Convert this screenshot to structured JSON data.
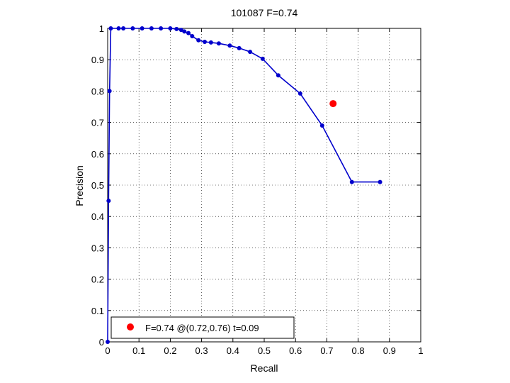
{
  "chart_data": {
    "type": "line",
    "title": "101087 F=0.74",
    "xlabel": "Recall",
    "ylabel": "Precision",
    "xlim": [
      0,
      1
    ],
    "ylim": [
      0,
      1
    ],
    "xticks": [
      "0",
      "0.1",
      "0.2",
      "0.3",
      "0.4",
      "0.5",
      "0.6",
      "0.7",
      "0.8",
      "0.9",
      "1"
    ],
    "yticks": [
      "0",
      "0.1",
      "0.2",
      "0.3",
      "0.4",
      "0.5",
      "0.6",
      "0.7",
      "0.8",
      "0.9",
      "1"
    ],
    "grid": true,
    "series": [
      {
        "color": "#0000cc",
        "x": [
          0.0,
          0.003,
          0.006,
          0.01,
          0.035,
          0.05,
          0.08,
          0.11,
          0.14,
          0.17,
          0.2,
          0.22,
          0.235,
          0.245,
          0.258,
          0.27,
          0.29,
          0.31,
          0.33,
          0.355,
          0.39,
          0.42,
          0.455,
          0.495,
          0.545,
          0.615,
          0.685,
          0.78,
          0.87
        ],
        "y": [
          0.0,
          0.45,
          0.8,
          1.0,
          1.0,
          1.0,
          1.0,
          1.0,
          1.0,
          1.0,
          1.0,
          0.998,
          0.995,
          0.99,
          0.985,
          0.975,
          0.962,
          0.957,
          0.955,
          0.952,
          0.945,
          0.937,
          0.925,
          0.903,
          0.85,
          0.792,
          0.69,
          0.51,
          0.51
        ]
      }
    ],
    "highlight_point": {
      "x": 0.72,
      "y": 0.76,
      "color": "#ff0000"
    },
    "legend": {
      "position": "bottom-left",
      "text": "F=0.74 @(0.72,0.76) t=0.09",
      "marker_color": "#ff0000"
    }
  }
}
